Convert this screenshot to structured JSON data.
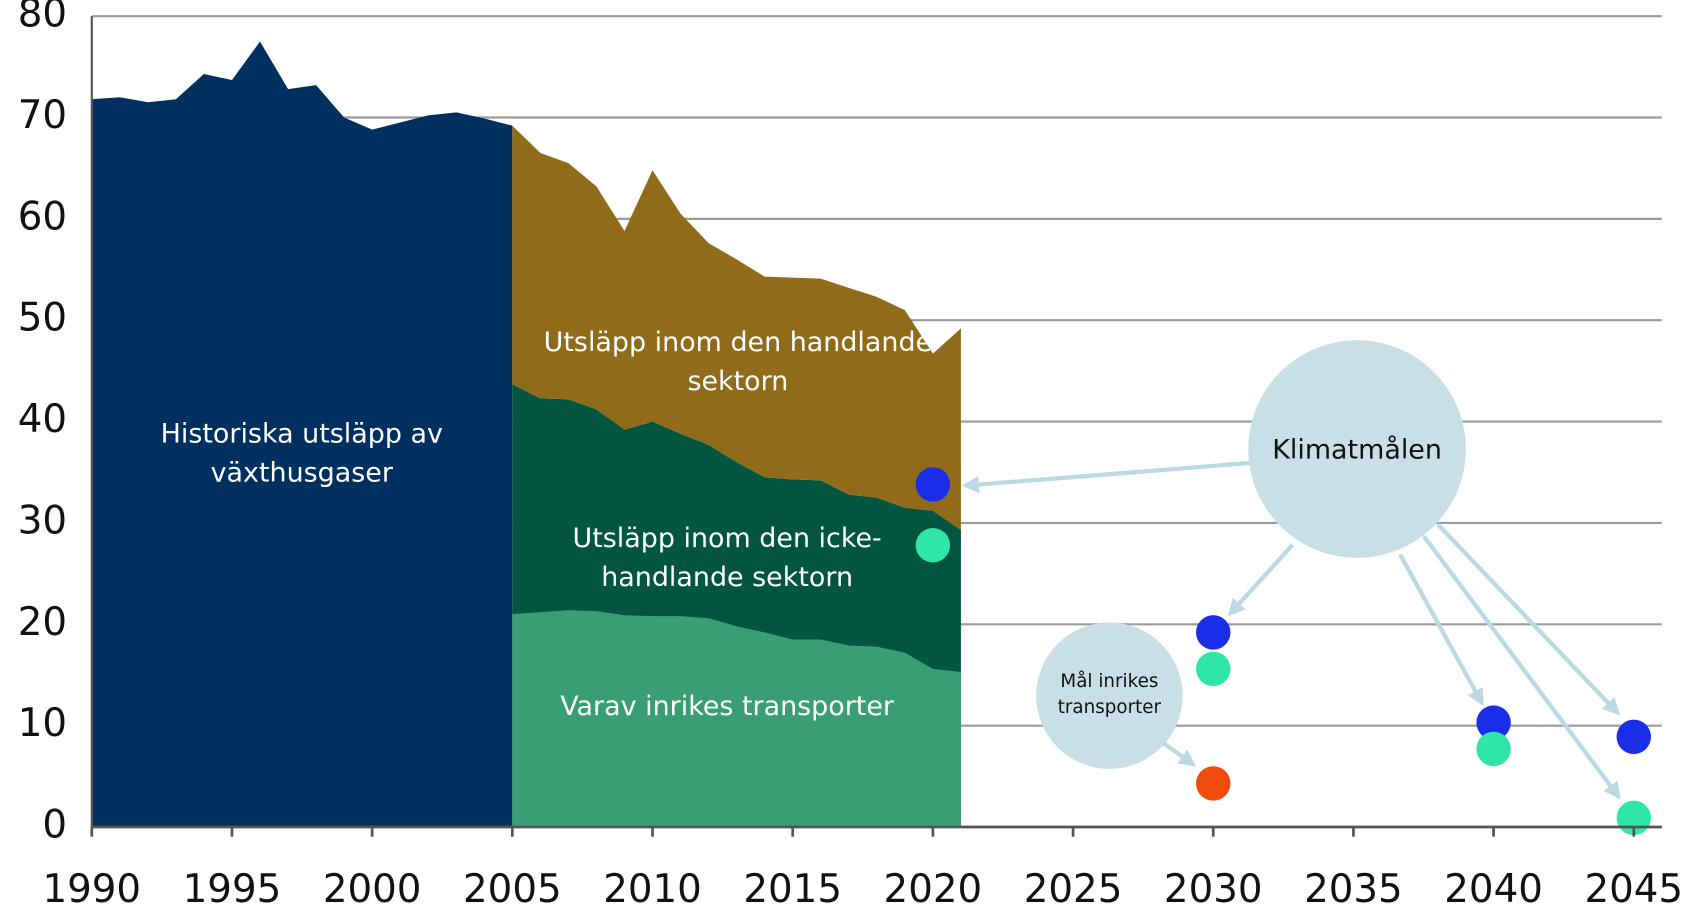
{
  "chart_data": {
    "type": "area",
    "x": [
      1990,
      1991,
      1992,
      1993,
      1994,
      1995,
      1996,
      1997,
      1998,
      1999,
      2000,
      2001,
      2002,
      2003,
      2004,
      2005,
      2006,
      2007,
      2008,
      2009,
      2010,
      2011,
      2012,
      2013,
      2014,
      2015,
      2016,
      2017,
      2018,
      2019,
      2020,
      2021
    ],
    "series": [
      {
        "name": "Historiska utsläpp av växthusgaser",
        "color": "#00305f",
        "values": [
          71.8,
          72,
          71.5,
          71.8,
          74.3,
          73.7,
          77.5,
          72.8,
          73.2,
          70,
          68.8,
          69.5,
          70.2,
          70.5,
          69.9,
          69.2,
          null,
          null,
          null,
          null,
          null,
          null,
          null,
          null,
          null,
          null,
          null,
          null,
          null,
          null,
          null,
          null
        ]
      },
      {
        "name": "Utsläpp inom den icke-handlande sektorn",
        "color": "#02553f",
        "values": [
          null,
          null,
          null,
          null,
          null,
          null,
          null,
          null,
          null,
          null,
          null,
          null,
          null,
          null,
          null,
          43.7,
          42.3,
          42.2,
          41.2,
          39.2,
          40,
          38.8,
          37.7,
          36,
          34.5,
          34.3,
          34.2,
          32.8,
          32.5,
          31.5,
          31.2,
          29.3
        ]
      },
      {
        "name": "Utsläpp inom den handlande sektorn",
        "color": "#8f6b1a",
        "stacked": true,
        "values": [
          null,
          null,
          null,
          null,
          null,
          null,
          null,
          null,
          null,
          null,
          null,
          null,
          null,
          null,
          null,
          25.5,
          24.2,
          23.3,
          22,
          19.6,
          24.8,
          21.7,
          19.9,
          20,
          19.8,
          19.9,
          19.9,
          20.4,
          19.8,
          19.5,
          15.5,
          19.9
        ]
      },
      {
        "name": "Varav inrikes transporter",
        "color": "#3a9e74",
        "values": [
          null,
          null,
          null,
          null,
          null,
          null,
          null,
          null,
          null,
          null,
          null,
          null,
          null,
          null,
          null,
          21,
          21.2,
          21.4,
          21.3,
          20.9,
          20.8,
          20.8,
          20.6,
          19.8,
          19.2,
          18.5,
          18.5,
          17.9,
          17.8,
          17.2,
          15.6,
          15.3
        ]
      }
    ],
    "points": [
      {
        "x": 2020,
        "y": 33.8,
        "color": "#1a2ee8"
      },
      {
        "x": 2020,
        "y": 27.8,
        "color": "#2ee6a6"
      },
      {
        "x": 2030,
        "y": 19.2,
        "color": "#1a2ee8"
      },
      {
        "x": 2030,
        "y": 15.6,
        "color": "#2ee6a6"
      },
      {
        "x": 2030,
        "y": 4.3,
        "color": "#f04a0c"
      },
      {
        "x": 2040,
        "y": 10.3,
        "color": "#1a2ee8"
      },
      {
        "x": 2040,
        "y": 7.7,
        "color": "#2ee6a6"
      },
      {
        "x": 2045,
        "y": 8.9,
        "color": "#1a2ee8"
      },
      {
        "x": 2045,
        "y": 0.9,
        "color": "#2ee6a6"
      }
    ],
    "annotations": [
      "Klimatmålen",
      "Mål inrikes transporter"
    ],
    "xlim": [
      1990,
      2046
    ],
    "xticks": [
      1990,
      1995,
      2000,
      2005,
      2010,
      2015,
      2020,
      2025,
      2030,
      2035,
      2040,
      2045
    ],
    "ylim": [
      0,
      80
    ],
    "yticks": [
      0,
      10,
      20,
      30,
      40,
      50,
      60,
      70,
      80
    ],
    "grid": true
  }
}
